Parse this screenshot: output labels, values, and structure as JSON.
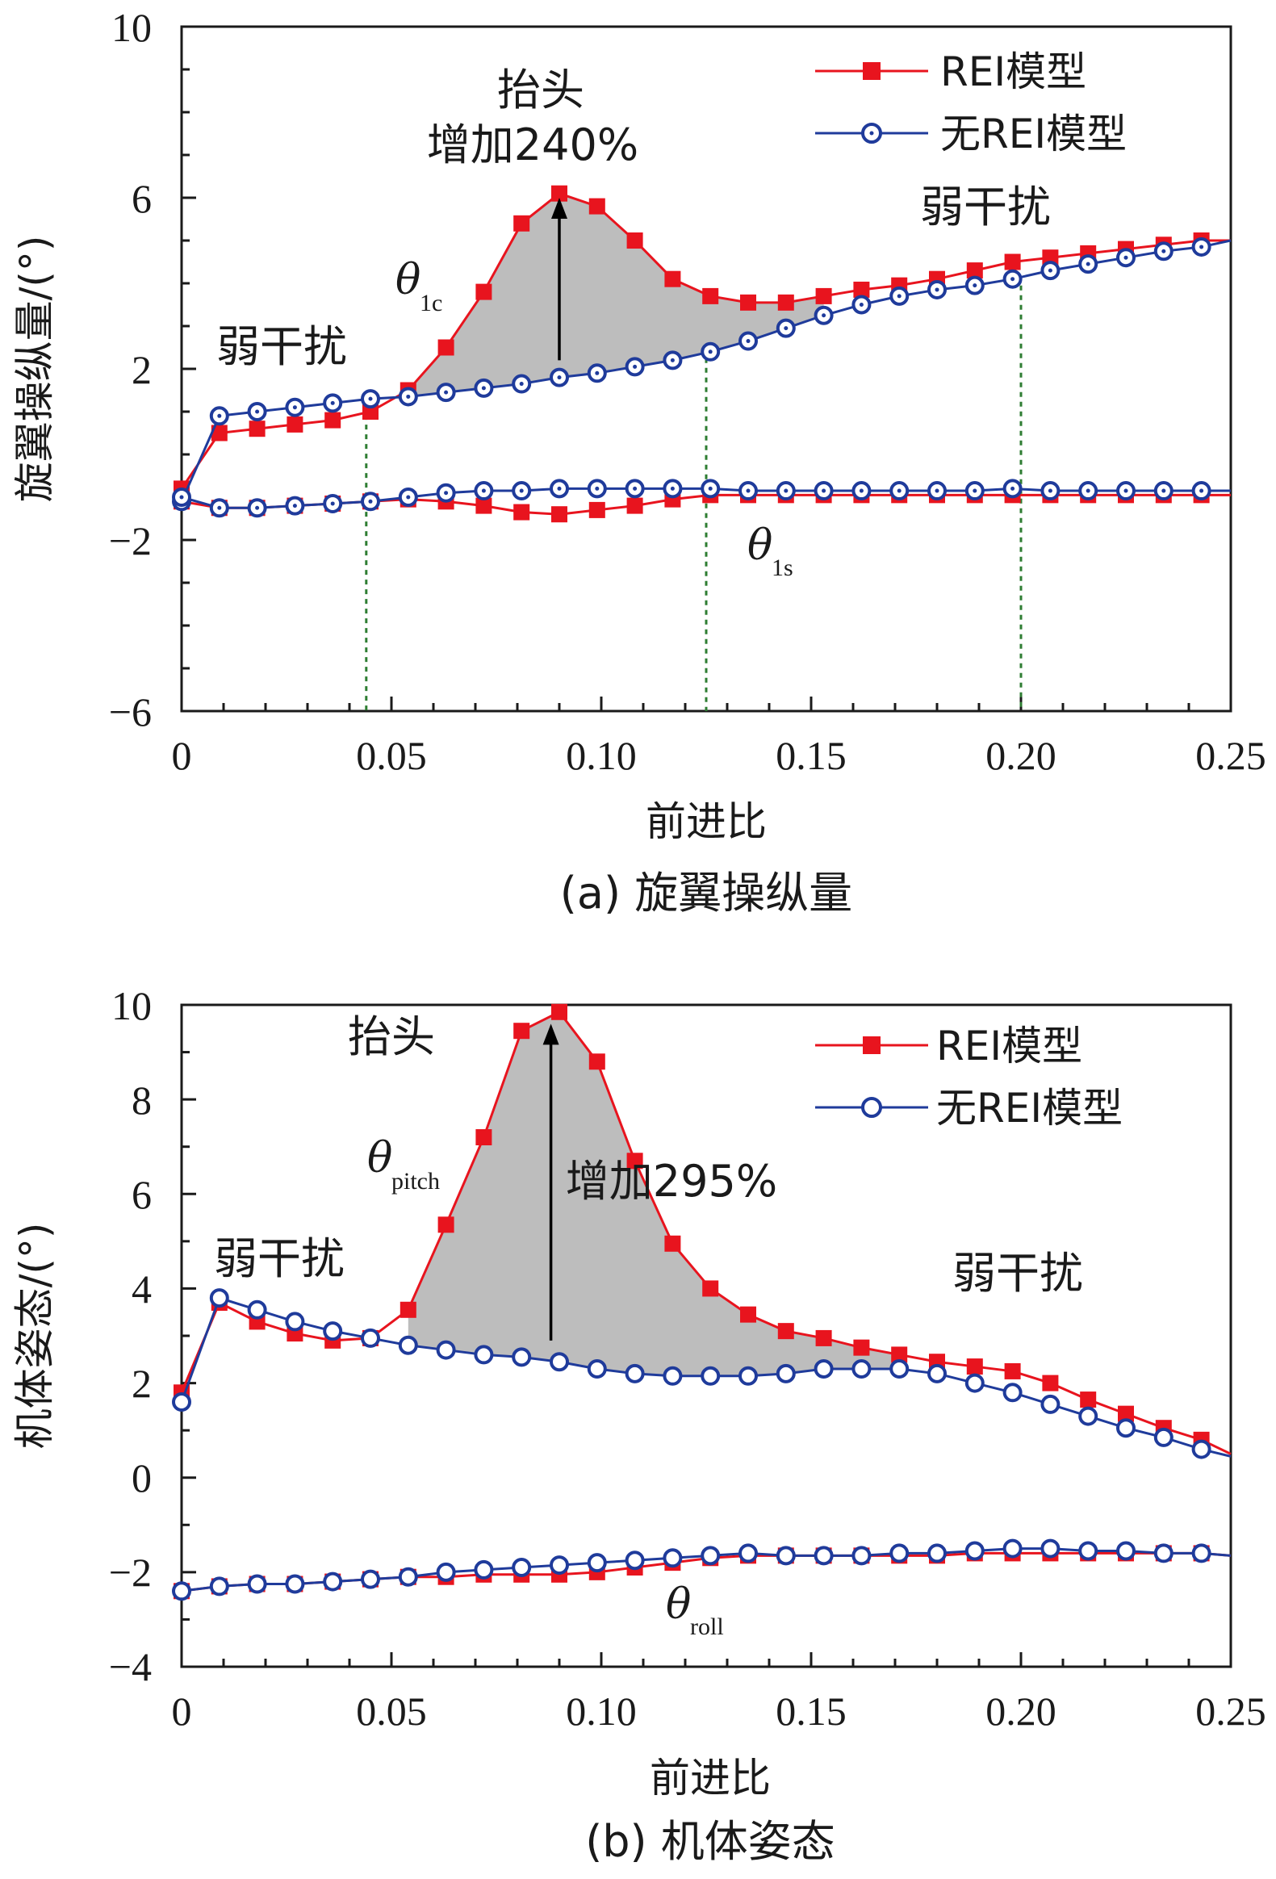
{
  "chart_data": [
    {
      "type": "line",
      "caption": "(a) 旋翼操纵量",
      "xlabel": "前进比",
      "ylabel": "旋翼操纵量/(°)",
      "xlim": [
        0,
        0.25
      ],
      "ylim": [
        -6,
        10
      ],
      "xticks": [
        0,
        0.05,
        0.1,
        0.15,
        0.2,
        0.25
      ],
      "xtick_labels": [
        "0",
        "0.05",
        "0.10",
        "0.15",
        "0.20",
        "0.25"
      ],
      "yticks": [
        -6,
        -2,
        2,
        6,
        10
      ],
      "ytick_labels": [
        "−6",
        "−2",
        "2",
        "6",
        "10"
      ],
      "legend": {
        "position": "top-right",
        "entries": [
          "REI模型",
          "无REI模型"
        ]
      },
      "series_colors": {
        "REI模型": "#e8141e",
        "无REI模型": "#1f3b9b"
      },
      "x": [
        0,
        0.009,
        0.018,
        0.027,
        0.036,
        0.045,
        0.054,
        0.063,
        0.072,
        0.081,
        0.09,
        0.099,
        0.108,
        0.117,
        0.126,
        0.135,
        0.144,
        0.153,
        0.162,
        0.171,
        0.18,
        0.189,
        0.198,
        0.207,
        0.216,
        0.225,
        0.234,
        0.243,
        0.25
      ],
      "series": [
        {
          "name": "REI模型",
          "group": "θ1c",
          "values": [
            -0.8,
            0.5,
            0.6,
            0.7,
            0.8,
            1.0,
            1.5,
            2.5,
            3.8,
            5.4,
            6.1,
            5.8,
            5.0,
            4.1,
            3.7,
            3.55,
            3.55,
            3.7,
            3.85,
            3.95,
            4.1,
            4.3,
            4.5,
            4.6,
            4.7,
            4.8,
            4.9,
            5.0,
            5.0
          ]
        },
        {
          "name": "无REI模型",
          "group": "θ1c",
          "values": [
            -1.1,
            0.9,
            1.0,
            1.1,
            1.2,
            1.3,
            1.35,
            1.45,
            1.55,
            1.65,
            1.8,
            1.9,
            2.05,
            2.2,
            2.4,
            2.65,
            2.95,
            3.25,
            3.5,
            3.7,
            3.85,
            3.95,
            4.1,
            4.3,
            4.45,
            4.6,
            4.75,
            4.85,
            5.0
          ]
        },
        {
          "name": "REI模型",
          "group": "θ1s",
          "values": [
            -1.1,
            -1.25,
            -1.25,
            -1.2,
            -1.15,
            -1.1,
            -1.05,
            -1.1,
            -1.2,
            -1.35,
            -1.4,
            -1.3,
            -1.2,
            -1.05,
            -0.95,
            -0.95,
            -0.95,
            -0.95,
            -0.95,
            -0.95,
            -0.95,
            -0.95,
            -0.95,
            -0.95,
            -0.95,
            -0.95,
            -0.95,
            -0.95,
            -0.95
          ]
        },
        {
          "name": "无REI模型",
          "group": "θ1s",
          "values": [
            -1.0,
            -1.25,
            -1.25,
            -1.2,
            -1.15,
            -1.1,
            -1.0,
            -0.9,
            -0.85,
            -0.85,
            -0.8,
            -0.8,
            -0.8,
            -0.8,
            -0.8,
            -0.85,
            -0.85,
            -0.85,
            -0.85,
            -0.85,
            -0.85,
            -0.85,
            -0.8,
            -0.85,
            -0.85,
            -0.85,
            -0.85,
            -0.85,
            -0.85
          ]
        }
      ],
      "shaded_region": {
        "x_from": 0.05,
        "x_to": 0.155,
        "between": [
          "REI模型 θ1c",
          "无REI模型 θ1c"
        ]
      },
      "vlines": [
        0.044,
        0.125,
        0.2
      ],
      "annotations": {
        "lift_label": "抬头",
        "increase_label": "增加240%",
        "weak_left": "弱干扰",
        "weak_right": "弱干扰",
        "theta_upper_sym": "θ",
        "theta_upper_sub": "1c",
        "theta_lower_sym": "θ",
        "theta_lower_sub": "1s"
      },
      "arrow": {
        "x": 0.09,
        "from": 2.2,
        "to": 6.0
      }
    },
    {
      "type": "line",
      "caption": "(b) 机体姿态",
      "xlabel": "前进比",
      "ylabel": "机体姿态/(°)",
      "xlim": [
        0,
        0.25
      ],
      "ylim": [
        -4,
        10
      ],
      "xticks": [
        0,
        0.05,
        0.1,
        0.15,
        0.2,
        0.25
      ],
      "xtick_labels": [
        "0",
        "0.05",
        "0.10",
        "0.15",
        "0.20",
        "0.25"
      ],
      "yticks": [
        -4,
        -2,
        0,
        2,
        4,
        6,
        8,
        10
      ],
      "ytick_labels": [
        "−4",
        "−2",
        "0",
        "2",
        "4",
        "6",
        "8",
        "10"
      ],
      "legend": {
        "position": "top-right",
        "entries": [
          "REI模型",
          "无REI模型"
        ]
      },
      "series_colors": {
        "REI模型": "#e8141e",
        "无REI模型": "#1f3b9b"
      },
      "x": [
        0,
        0.009,
        0.018,
        0.027,
        0.036,
        0.045,
        0.054,
        0.063,
        0.072,
        0.081,
        0.09,
        0.099,
        0.108,
        0.117,
        0.126,
        0.135,
        0.144,
        0.153,
        0.162,
        0.171,
        0.18,
        0.189,
        0.198,
        0.207,
        0.216,
        0.225,
        0.234,
        0.243,
        0.25
      ],
      "series": [
        {
          "name": "REI模型",
          "group": "θpitch",
          "values": [
            1.8,
            3.7,
            3.3,
            3.05,
            2.9,
            2.95,
            3.55,
            5.35,
            7.2,
            9.45,
            9.85,
            8.8,
            6.7,
            4.95,
            4.0,
            3.45,
            3.1,
            2.95,
            2.75,
            2.6,
            2.45,
            2.35,
            2.25,
            2.0,
            1.65,
            1.35,
            1.05,
            0.8,
            0.5
          ]
        },
        {
          "name": "无REI模型",
          "group": "θpitch",
          "values": [
            1.6,
            3.8,
            3.55,
            3.3,
            3.1,
            2.95,
            2.8,
            2.7,
            2.6,
            2.55,
            2.45,
            2.3,
            2.2,
            2.15,
            2.15,
            2.15,
            2.2,
            2.3,
            2.3,
            2.3,
            2.2,
            2.0,
            1.8,
            1.55,
            1.3,
            1.05,
            0.85,
            0.6,
            0.45
          ]
        },
        {
          "name": "REI模型",
          "group": "θroll",
          "values": [
            -2.4,
            -2.3,
            -2.25,
            -2.25,
            -2.2,
            -2.15,
            -2.1,
            -2.1,
            -2.05,
            -2.05,
            -2.05,
            -2.0,
            -1.9,
            -1.8,
            -1.7,
            -1.65,
            -1.65,
            -1.65,
            -1.65,
            -1.65,
            -1.65,
            -1.6,
            -1.6,
            -1.6,
            -1.6,
            -1.6,
            -1.6,
            -1.6,
            -1.65
          ]
        },
        {
          "name": "无REI模型",
          "group": "θroll",
          "values": [
            -2.4,
            -2.3,
            -2.25,
            -2.25,
            -2.2,
            -2.15,
            -2.1,
            -2.0,
            -1.95,
            -1.9,
            -1.85,
            -1.8,
            -1.75,
            -1.7,
            -1.65,
            -1.6,
            -1.65,
            -1.65,
            -1.65,
            -1.6,
            -1.6,
            -1.55,
            -1.5,
            -1.5,
            -1.55,
            -1.55,
            -1.6,
            -1.6,
            -1.65
          ]
        }
      ],
      "shaded_region": {
        "x_from": 0.048,
        "x_to": 0.172,
        "between": [
          "REI模型 θpitch",
          "无REI模型 θpitch"
        ]
      },
      "vlines": [],
      "annotations": {
        "lift_label": "抬头",
        "increase_label": "增加295%",
        "weak_left": "弱干扰",
        "weak_right": "弱干扰",
        "theta_upper_sym": "θ",
        "theta_upper_sub": "pitch",
        "theta_lower_sym": "θ",
        "theta_lower_sub": "roll"
      },
      "arrow": {
        "x": 0.088,
        "from": 2.9,
        "to": 9.6
      }
    }
  ]
}
